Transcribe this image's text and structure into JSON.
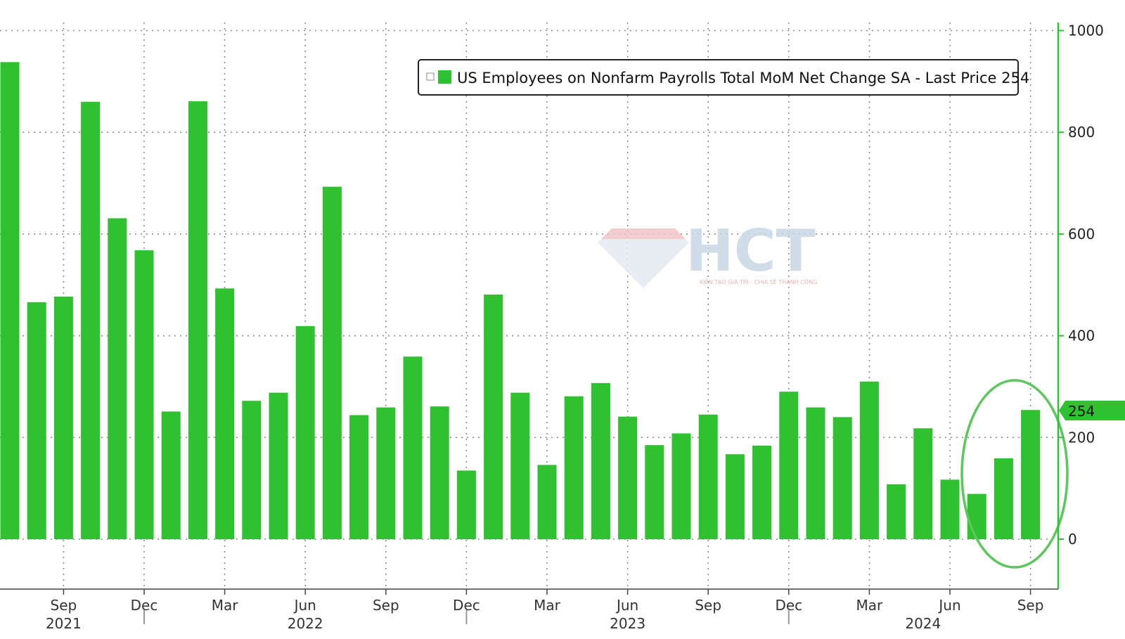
{
  "chart_data": {
    "type": "bar",
    "series": [
      {
        "name": "US Employees on Nonfarm Payrolls Total MoM Net Change SA",
        "color": "#2fc12f",
        "values": [
          938,
          466,
          477,
          860,
          631,
          568,
          251,
          861,
          493,
          272,
          288,
          419,
          693,
          244,
          259,
          359,
          261,
          135,
          481,
          288,
          146,
          281,
          307,
          241,
          185,
          208,
          245,
          167,
          184,
          290,
          259,
          240,
          310,
          108,
          218,
          117,
          89,
          159,
          254
        ]
      }
    ],
    "x_ticks": [
      {
        "index": 2,
        "label": "Sep"
      },
      {
        "index": 5,
        "label": "Dec"
      },
      {
        "index": 8,
        "label": "Mar"
      },
      {
        "index": 11,
        "label": "Jun"
      },
      {
        "index": 14,
        "label": "Sep"
      },
      {
        "index": 17,
        "label": "Dec"
      },
      {
        "index": 20,
        "label": "Mar"
      },
      {
        "index": 23,
        "label": "Jun"
      },
      {
        "index": 26,
        "label": "Sep"
      },
      {
        "index": 29,
        "label": "Dec"
      },
      {
        "index": 32,
        "label": "Mar"
      },
      {
        "index": 35,
        "label": "Jun"
      },
      {
        "index": 38,
        "label": "Sep"
      }
    ],
    "year_labels": [
      {
        "index": 2,
        "label": "2021"
      },
      {
        "index": 11,
        "label": "2022"
      },
      {
        "index": 23,
        "label": "2023"
      },
      {
        "index": 34,
        "label": "2024"
      }
    ],
    "year_separators": [
      5,
      17,
      29
    ],
    "y_ticks": [
      0,
      200,
      400,
      600,
      800,
      1000
    ],
    "ylim": [
      -100,
      1000
    ],
    "grid": true,
    "legend": {
      "label": "US Employees on Nonfarm Payrolls Total MoM Net Change SA - Last Price 254",
      "position": "top-right"
    },
    "last_price": {
      "label": "254",
      "value": 254
    },
    "annotation": {
      "shape": "ellipse",
      "color": "#55c255",
      "highlights": [
        37,
        38
      ]
    }
  },
  "watermark": {
    "text": "HCT",
    "tagline": "KIẾN TẠO GIÁ TRỊ - CHIA SẺ THÀNH CÔNG"
  }
}
